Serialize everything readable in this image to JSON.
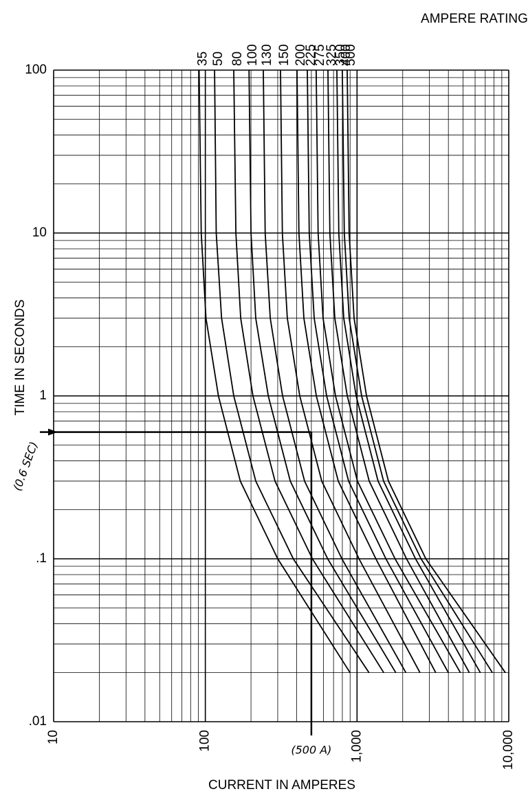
{
  "chart_data": {
    "type": "line",
    "x_label": "CURRENT IN AMPERES",
    "y_label": "TIME IN SECONDS",
    "legend_title": "AMPERE RATING",
    "log_x": true,
    "log_y": true,
    "grid": true,
    "xlim": [
      10,
      10000
    ],
    "ylim": [
      0.01,
      100
    ],
    "xticks": [
      10,
      100,
      {
        "value": 1000,
        "label": "1,000"
      },
      {
        "value": 10000,
        "label": "10,000"
      }
    ],
    "yticks": [
      {
        "value": 0.01,
        "label": ".01"
      },
      {
        "value": 0.1,
        "label": ".1"
      },
      1,
      10,
      100
    ],
    "x_minor_ticks": [
      20,
      30,
      40,
      50,
      60,
      70,
      80,
      90,
      200,
      300,
      400,
      500,
      600,
      700,
      800,
      900,
      2000,
      3000,
      4000,
      5000,
      6000,
      7000,
      8000,
      9000
    ],
    "y_minor_ticks": [
      0.02,
      0.03,
      0.04,
      0.05,
      0.06,
      0.07,
      0.08,
      0.09,
      0.2,
      0.3,
      0.4,
      0.5,
      0.6,
      0.7,
      0.8,
      0.9,
      2,
      3,
      4,
      5,
      6,
      7,
      8,
      9,
      20,
      30,
      40,
      50,
      60,
      70,
      80,
      90
    ],
    "series": [
      {
        "name": "35",
        "color": "#000000",
        "x": [
          91,
          94,
          101,
          122,
          170,
          300,
          900
        ],
        "y": [
          100,
          10,
          3,
          1,
          0.3,
          0.1,
          0.02
        ]
      },
      {
        "name": "50",
        "color": "#000000",
        "x": [
          115,
          118,
          128,
          154,
          215,
          380,
          1200
        ],
        "y": [
          100,
          10,
          3,
          1,
          0.3,
          0.1,
          0.02
        ]
      },
      {
        "name": "80",
        "color": "#000000",
        "x": [
          154,
          159,
          171,
          206,
          288,
          508,
          1500
        ],
        "y": [
          100,
          10,
          3,
          1,
          0.3,
          0.1,
          0.02
        ]
      },
      {
        "name": "100",
        "color": "#000000",
        "x": [
          194,
          200,
          215,
          260,
          363,
          640,
          1800
        ],
        "y": [
          100,
          10,
          3,
          1,
          0.3,
          0.1,
          0.02
        ]
      },
      {
        "name": "130",
        "color": "#000000",
        "x": [
          241,
          248,
          268,
          323,
          451,
          795,
          2100
        ],
        "y": [
          100,
          10,
          3,
          1,
          0.3,
          0.1,
          0.02
        ]
      },
      {
        "name": "150",
        "color": "#000000",
        "x": [
          313,
          322,
          347,
          419,
          585,
          1030,
          2600
        ],
        "y": [
          100,
          10,
          3,
          1,
          0.3,
          0.1,
          0.02
        ]
      },
      {
        "name": "200",
        "color": "#000000",
        "x": [
          402,
          414,
          446,
          539,
          752,
          1330,
          3300
        ],
        "y": [
          100,
          10,
          3,
          1,
          0.3,
          0.1,
          0.02
        ]
      },
      {
        "name": "225",
        "color": "#000000",
        "x": [
          470,
          484,
          522,
          630,
          879,
          1550,
          4000
        ],
        "y": [
          100,
          10,
          3,
          1,
          0.3,
          0.1,
          0.02
        ]
      },
      {
        "name": "275",
        "color": "#000000",
        "x": [
          538,
          554,
          597,
          721,
          1006,
          1780,
          4800
        ],
        "y": [
          100,
          10,
          3,
          1,
          0.3,
          0.1,
          0.02
        ]
      },
      {
        "name": "325",
        "color": "#000000",
        "x": [
          643,
          662,
          714,
          862,
          1202,
          2120,
          5500
        ],
        "y": [
          100,
          10,
          3,
          1,
          0.3,
          0.1,
          0.02
        ]
      },
      {
        "name": "350",
        "color": "#000000",
        "x": [
          736,
          758,
          817,
          986,
          1376,
          2430,
          6500
        ],
        "y": [
          100,
          10,
          3,
          1,
          0.3,
          0.1,
          0.02
        ]
      },
      {
        "name": "400",
        "color": "#000000",
        "x": [
          800,
          824,
          888,
          1072,
          1496,
          2640,
          7800
        ],
        "y": [
          100,
          10,
          3,
          1,
          0.3,
          0.1,
          0.02
        ]
      },
      {
        "name": "500",
        "color": "#000000",
        "x": [
          861,
          887,
          956,
          1154,
          1610,
          2840,
          9500
        ],
        "y": [
          100,
          10,
          3,
          1,
          0.3,
          0.1,
          0.02
        ]
      }
    ],
    "marker": {
      "x": 500,
      "y": 0.6,
      "x_label": "(500 A)",
      "y_label": "(0.6 SEC)"
    }
  }
}
